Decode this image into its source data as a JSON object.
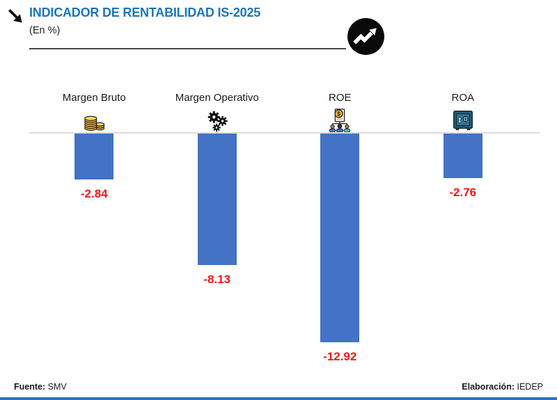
{
  "header": {
    "title": "INDICADOR DE RENTABILIDAD IS-2025",
    "subtitle": "(En %)",
    "corner_icon": "arrow-down-right-icon",
    "badge_icon": "trend-up-circle-icon"
  },
  "chart_data": {
    "type": "bar",
    "title": "INDICADOR DE RENTABILIDAD IS-2025",
    "subtitle_unit": "(En %)",
    "categories": [
      "Margen Bruto",
      "Margen Operativo",
      "ROE",
      "ROA"
    ],
    "values": [
      -2.84,
      -8.13,
      -12.92,
      -2.76
    ],
    "value_labels": [
      "-2.84",
      "-8.13",
      "-12.92",
      "-2.76"
    ],
    "category_icons": [
      "coins-icon",
      "gears-icon",
      "people-money-icon",
      "safe-icon"
    ],
    "orientation": "vertical-negative",
    "ylim": [
      -14,
      0
    ],
    "grid": false,
    "legend": false,
    "bar_color": "#4472C4",
    "value_label_color": "#F81616",
    "baseline_color": "#DCDCDC"
  },
  "footer": {
    "source_label": "Fuente:",
    "source_value": "SMV",
    "elaboration_label": "Elaboración:",
    "elaboration_value": "IEDEP"
  },
  "colors": {
    "title_blue": "#1B75BC",
    "bar_blue": "#4472C4",
    "value_red": "#F81616",
    "accent_strip_blue": "#2E74B5",
    "coin_gold": "#F0B429",
    "safe_teal": "#245C77"
  }
}
